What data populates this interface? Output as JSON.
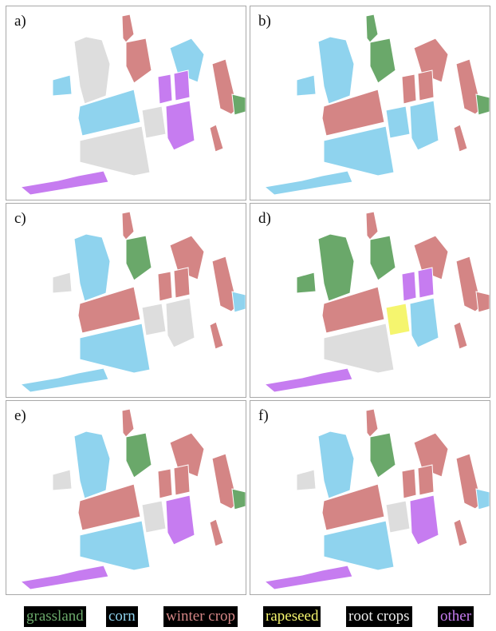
{
  "panels": [
    {
      "label": "a)"
    },
    {
      "label": "b)"
    },
    {
      "label": "c)"
    },
    {
      "label": "d)"
    },
    {
      "label": "e)"
    },
    {
      "label": "f)"
    }
  ],
  "legend": [
    {
      "key": "grassland",
      "label": "grassland",
      "color": "#6aa86a"
    },
    {
      "key": "corn",
      "label": "corn",
      "color": "#8fd3ee"
    },
    {
      "key": "winter_crop",
      "label": "winter crop",
      "color": "#d48585"
    },
    {
      "key": "rapeseed",
      "label": "rapeseed",
      "color": "#f5f56e"
    },
    {
      "key": "root_crops",
      "label": "root crops",
      "color": "#dddddd"
    },
    {
      "key": "other",
      "label": "other",
      "color": "#c67cf0"
    }
  ]
}
